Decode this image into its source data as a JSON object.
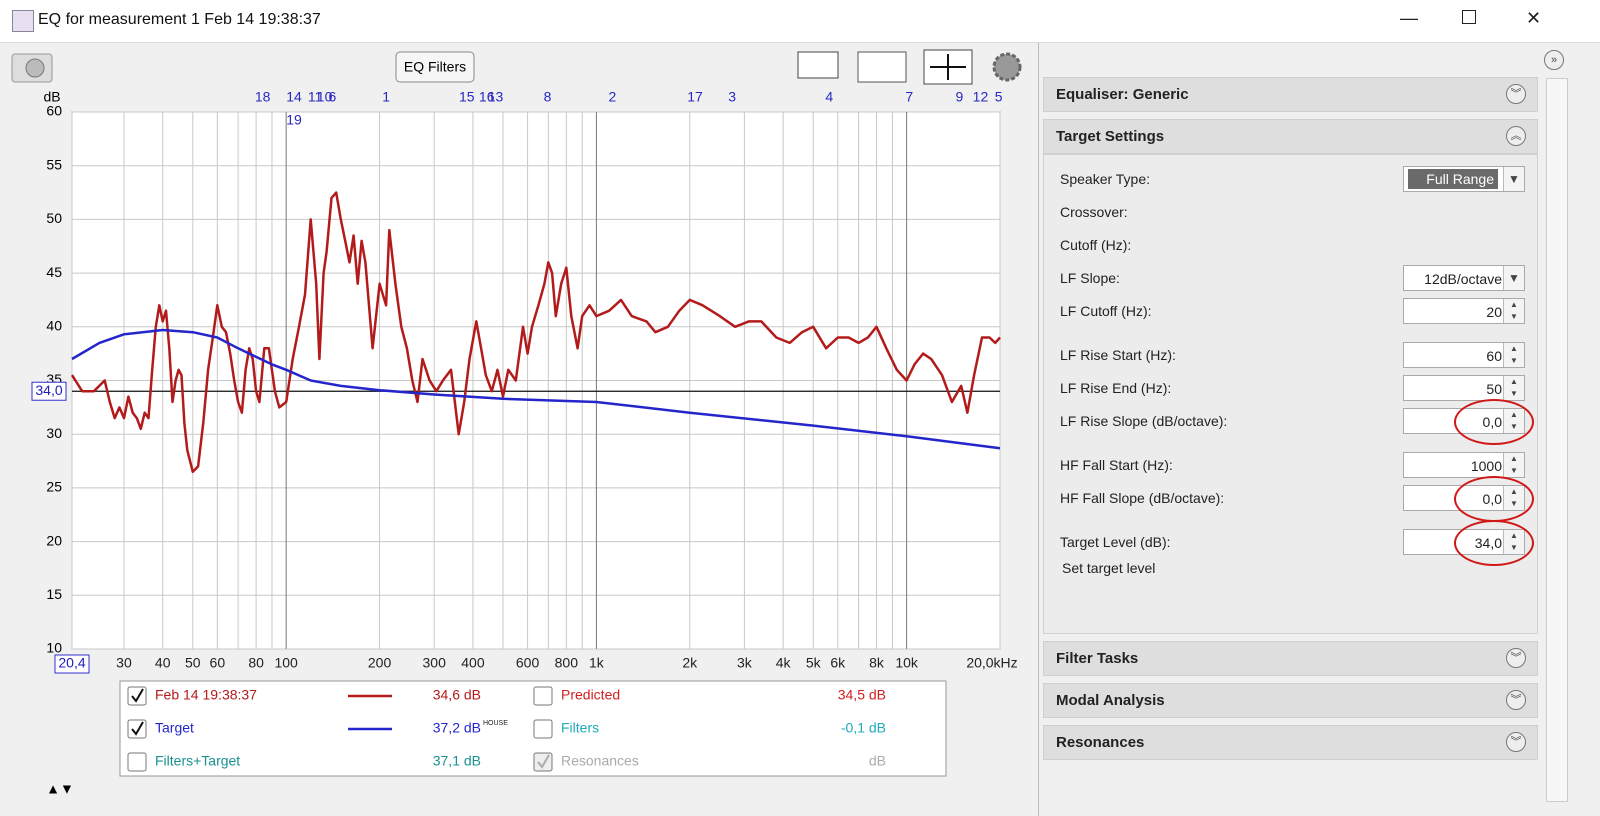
{
  "window": {
    "title": "EQ for measurement 1 Feb 14 19:38:37"
  },
  "toolbar": {
    "eq_filters_button": "EQ Filters"
  },
  "chart_data": {
    "type": "line",
    "y_label": "dB",
    "xlog": true,
    "xlim": [
      20.4,
      20000
    ],
    "ylim": [
      10,
      60
    ],
    "xticks": [
      {
        "value": 20.4,
        "label": "20,4"
      },
      30,
      40,
      50,
      60,
      80,
      100,
      200,
      300,
      400,
      600,
      800,
      {
        "value": 1000,
        "label": "1k"
      },
      {
        "value": 2000,
        "label": "2k"
      },
      {
        "value": 3000,
        "label": "3k"
      },
      {
        "value": 4000,
        "label": "4k"
      },
      {
        "value": 5000,
        "label": "5k"
      },
      {
        "value": 6000,
        "label": "6k"
      },
      {
        "value": 8000,
        "label": "8k"
      },
      {
        "value": 10000,
        "label": "10k"
      },
      {
        "value": 20000,
        "label": "20,0kHz"
      }
    ],
    "xminor": [
      70,
      90,
      500,
      700,
      900,
      7000,
      9000
    ],
    "yticks": [
      10,
      15,
      20,
      25,
      30,
      35,
      40,
      45,
      50,
      55,
      60
    ],
    "grid": true,
    "reference_line": {
      "value": 34,
      "label": "34,0"
    },
    "filter_markers": [
      {
        "label": "18",
        "x": 84
      },
      {
        "label": "14",
        "x": 106
      },
      {
        "label": "19",
        "x": 106,
        "row": 2
      },
      {
        "label": "11",
        "x": 124
      },
      {
        "label": "10",
        "x": 133
      },
      {
        "label": "6",
        "x": 141
      },
      {
        "label": "1",
        "x": 210
      },
      {
        "label": "15",
        "x": 382
      },
      {
        "label": "16",
        "x": 443
      },
      {
        "label": "13",
        "x": 473
      },
      {
        "label": "8",
        "x": 696
      },
      {
        "label": "2",
        "x": 1126
      },
      {
        "label": "17",
        "x": 2080
      },
      {
        "label": "3",
        "x": 2740
      },
      {
        "label": "4",
        "x": 5630
      },
      {
        "label": "7",
        "x": 10200
      },
      {
        "label": "9",
        "x": 14800
      },
      {
        "label": "12",
        "x": 17300
      },
      {
        "label": "5",
        "x": 19800
      }
    ],
    "series": [
      {
        "name": "Feb 14 19:38:37",
        "color": "#b31b1b",
        "x": [
          20.4,
          22,
          24,
          26,
          27,
          28,
          29,
          30,
          31,
          32,
          33,
          34,
          35,
          36,
          37,
          38,
          39,
          40,
          41,
          42,
          43,
          44,
          45,
          46,
          47,
          48,
          50,
          52,
          54,
          56,
          58,
          60,
          62,
          64,
          66,
          68,
          70,
          72,
          74,
          76,
          78,
          80,
          82,
          85,
          88,
          92,
          95,
          100,
          105,
          110,
          115,
          120,
          125,
          128,
          132,
          135,
          140,
          145,
          150,
          155,
          160,
          165,
          170,
          175,
          180,
          190,
          200,
          210,
          215,
          225,
          235,
          245,
          255,
          265,
          275,
          290,
          305,
          320,
          340,
          360,
          375,
          390,
          410,
          425,
          440,
          460,
          480,
          500,
          520,
          550,
          580,
          600,
          620,
          650,
          680,
          700,
          720,
          740,
          770,
          800,
          830,
          870,
          900,
          950,
          1000,
          1100,
          1200,
          1300,
          1450,
          1550,
          1700,
          1850,
          2000,
          2200,
          2500,
          2800,
          3100,
          3400,
          3800,
          4200,
          4600,
          5000,
          5500,
          6000,
          6500,
          7000,
          7500,
          8000,
          8600,
          9300,
          10000,
          10600,
          11300,
          12000,
          13000,
          14000,
          15000,
          15700,
          16500,
          17500,
          18500,
          19300,
          20000
        ],
        "values": [
          35.5,
          34,
          34,
          35,
          33,
          31.5,
          32.5,
          31.5,
          33.5,
          32,
          31.5,
          30.5,
          32,
          31.5,
          36,
          40,
          42,
          40.5,
          41.5,
          38,
          33,
          35,
          36,
          35.5,
          31,
          28.5,
          26.5,
          27,
          31,
          36,
          39,
          42,
          40,
          39.5,
          37.5,
          35,
          33,
          32,
          36,
          38,
          37,
          34,
          33,
          38,
          38,
          34,
          32.5,
          33,
          37,
          40,
          43,
          50,
          44,
          37,
          45,
          47,
          52,
          52.5,
          50,
          48,
          46,
          48.5,
          44,
          48,
          46,
          38,
          44,
          42,
          49,
          44,
          40,
          38,
          35,
          33,
          37,
          35,
          34,
          35,
          36,
          30,
          33,
          37,
          40.5,
          38,
          35.5,
          34,
          36,
          33.5,
          36,
          35,
          40,
          37.5,
          40,
          42,
          44,
          46,
          45,
          41,
          44,
          45.5,
          41,
          38,
          41,
          42,
          41,
          41.5,
          42.5,
          41,
          40.5,
          39.5,
          40,
          41.5,
          42.5,
          42,
          41,
          40,
          40.5,
          40.5,
          39,
          38.5,
          39.5,
          40,
          38,
          39,
          39,
          38.5,
          39,
          40,
          38,
          36,
          35,
          36.5,
          37.5,
          37,
          35.5,
          33,
          34.5,
          32,
          35.5,
          39,
          39,
          38.5,
          39
        ]
      },
      {
        "name": "Target",
        "color": "#2525cc",
        "x": [
          20.4,
          25,
          30,
          40,
          50,
          60,
          70,
          80,
          90,
          100,
          120,
          150,
          200,
          300,
          500,
          1000,
          2000,
          5000,
          10000,
          20000
        ],
        "values": [
          37,
          38.5,
          39.3,
          39.7,
          39.5,
          39,
          38,
          37.2,
          36.5,
          36,
          35,
          34.5,
          34.1,
          33.7,
          33.3,
          33,
          32,
          30.8,
          29.8,
          28.7
        ]
      }
    ]
  },
  "legend_table": {
    "left": [
      {
        "checked": true,
        "level": "34,6 dB"
      },
      {
        "checked": true,
        "level": "37,2 dB",
        "note": "HOUSE"
      },
      {
        "checked": false,
        "name": "Filters+Target",
        "level": "37,1 dB",
        "color": "#1a9090"
      }
    ],
    "right": [
      {
        "checked": false,
        "name": "Predicted",
        "level": "34,5 dB",
        "color": "#d42020"
      },
      {
        "checked": false,
        "name": "Filters",
        "level": "-0,1 dB",
        "color": "#20aabb"
      },
      {
        "checked": true,
        "disabled": true,
        "name": "Resonances",
        "level": "dB",
        "color": "#aaaaaa"
      }
    ]
  },
  "panel": {
    "sections": [
      {
        "title": "Equaliser: Generic",
        "expanded": false
      },
      {
        "title": "Target Settings",
        "expanded": true
      },
      {
        "title": "Filter Tasks",
        "expanded": false
      },
      {
        "title": "Modal Analysis",
        "expanded": false
      },
      {
        "title": "Resonances",
        "expanded": false
      }
    ],
    "target_settings": {
      "fields": [
        {
          "label": "Speaker Type:",
          "value": "Full Range",
          "control": "dropdown",
          "selected": true
        },
        {
          "label": "Crossover:"
        },
        {
          "label": "Cutoff (Hz):"
        },
        {
          "label": "LF Slope:",
          "value": "12dB/octave",
          "control": "dropdown"
        },
        {
          "label": "LF Cutoff (Hz):",
          "value": "20",
          "control": "spinner"
        },
        {
          "label": "LF Rise Start (Hz):",
          "value": "60",
          "control": "spinner"
        },
        {
          "label": "LF Rise End (Hz):",
          "value": "50",
          "control": "spinner"
        },
        {
          "label": "LF Rise Slope (dB/octave):",
          "value": "0,0",
          "control": "spinner",
          "highlighted": true
        },
        {
          "label": "HF Fall Start (Hz):",
          "value": "1000",
          "control": "spinner"
        },
        {
          "label": "HF Fall Slope (dB/octave):",
          "value": "0,0",
          "control": "spinner",
          "highlighted": true
        },
        {
          "label": "Target Level (dB):",
          "value": "34,0",
          "control": "spinner",
          "highlighted": true
        }
      ],
      "set_target_level": "Set target level"
    }
  }
}
